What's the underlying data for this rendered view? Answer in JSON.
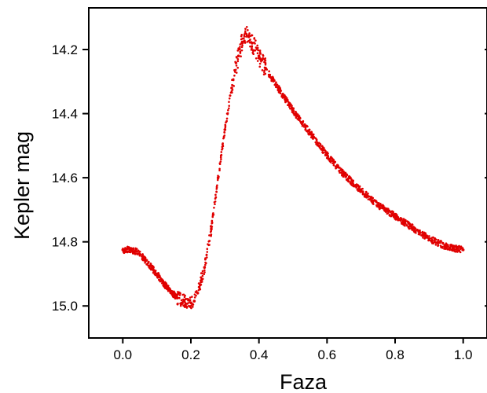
{
  "chart_data": {
    "type": "scatter",
    "title": "",
    "xlabel": "Faza",
    "ylabel": "Kepler mag",
    "xlim": [
      -0.1,
      1.07
    ],
    "ylim": [
      15.1,
      14.07
    ],
    "y_inverted": true,
    "grid": false,
    "marker_color": "#e00000",
    "x_ticks": [
      0.0,
      0.2,
      0.4,
      0.6,
      0.8,
      1.0
    ],
    "x_tick_labels": [
      "0.0",
      "0.2",
      "0.4",
      "0.6",
      "0.8",
      "1.0"
    ],
    "y_ticks": [
      14.2,
      14.4,
      14.6,
      14.8,
      15.0
    ],
    "y_tick_labels": [
      "14.2",
      "14.4",
      "14.6",
      "14.8",
      "15.0"
    ],
    "series": [
      {
        "x": [
          0.0,
          0.02,
          0.04,
          0.06,
          0.08,
          0.1,
          0.12,
          0.14,
          0.16,
          0.18,
          0.2,
          0.21,
          0.22,
          0.24,
          0.26,
          0.28,
          0.3,
          0.32,
          0.34,
          0.35,
          0.36,
          0.37,
          0.38,
          0.4,
          0.42,
          0.45,
          0.5,
          0.55,
          0.6,
          0.65,
          0.7,
          0.75,
          0.8,
          0.85,
          0.9,
          0.95,
          0.97,
          1.0
        ],
        "y": [
          14.825,
          14.825,
          14.83,
          14.85,
          14.875,
          14.9,
          14.93,
          14.955,
          14.975,
          14.985,
          14.99,
          14.985,
          14.96,
          14.88,
          14.76,
          14.6,
          14.45,
          14.32,
          14.22,
          14.18,
          14.15,
          14.16,
          14.18,
          14.22,
          14.26,
          14.31,
          14.39,
          14.46,
          14.53,
          14.59,
          14.64,
          14.685,
          14.72,
          14.755,
          14.79,
          14.815,
          14.82,
          14.825
        ]
      }
    ]
  }
}
